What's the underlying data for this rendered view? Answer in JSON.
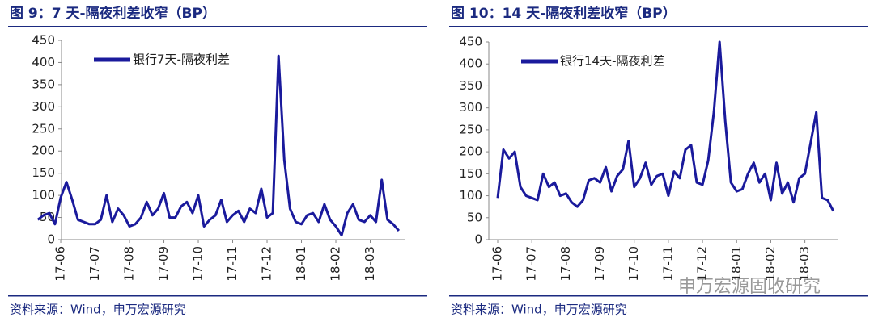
{
  "watermark": "申万宏源固收研究",
  "chart_data": [
    {
      "type": "line",
      "title": "图 9：7 天-隔夜利差收窄（BP）",
      "source": "资料来源：Wind，申万宏源研究",
      "categories": [
        null,
        null,
        null,
        null,
        "17-06",
        null,
        null,
        null,
        null,
        null,
        "17-07",
        null,
        null,
        null,
        null,
        null,
        "17-08",
        null,
        null,
        null,
        null,
        null,
        "17-09",
        null,
        null,
        null,
        null,
        null,
        "17-10",
        null,
        null,
        null,
        null,
        null,
        "17-11",
        null,
        null,
        null,
        null,
        null,
        "17-12",
        null,
        null,
        null,
        null,
        null,
        "18-01",
        null,
        null,
        null,
        null,
        null,
        "18-02",
        null,
        null,
        null,
        null,
        null,
        "18-03",
        null,
        null,
        null,
        null,
        null
      ],
      "series": [
        {
          "name": "银行7天-隔夜利差",
          "color": "#1a1a9c",
          "values": [
            45,
            55,
            60,
            35,
            95,
            130,
            90,
            45,
            40,
            35,
            35,
            45,
            100,
            40,
            70,
            55,
            30,
            35,
            50,
            85,
            55,
            70,
            105,
            50,
            50,
            75,
            85,
            60,
            100,
            30,
            45,
            55,
            90,
            40,
            55,
            65,
            40,
            70,
            60,
            115,
            50,
            60,
            415,
            180,
            70,
            40,
            35,
            55,
            60,
            40,
            80,
            45,
            30,
            10,
            60,
            80,
            45,
            40,
            55,
            40,
            135,
            45,
            35,
            20
          ]
        }
      ],
      "ylim": [
        0,
        450
      ],
      "yticks": [
        0,
        50,
        100,
        150,
        200,
        250,
        300,
        350,
        400,
        450
      ],
      "legend": "upper left"
    },
    {
      "type": "line",
      "title": "图 10：14 天-隔夜利差收窄（BP）",
      "source": "资料来源：Wind，申万宏源研究",
      "categories": [
        "17-06",
        null,
        null,
        null,
        null,
        null,
        "17-07",
        null,
        null,
        null,
        null,
        null,
        "17-08",
        null,
        null,
        null,
        null,
        null,
        "17-09",
        null,
        null,
        null,
        null,
        null,
        "17-10",
        null,
        null,
        null,
        null,
        null,
        "17-11",
        null,
        null,
        null,
        null,
        null,
        "17-12",
        null,
        null,
        null,
        null,
        null,
        "18-01",
        null,
        null,
        null,
        null,
        null,
        "18-02",
        null,
        null,
        null,
        null,
        null,
        "18-03",
        null,
        null,
        null,
        null,
        null
      ],
      "series": [
        {
          "name": "银行14天-隔夜利差",
          "color": "#1a1a9c",
          "values": [
            95,
            205,
            185,
            200,
            120,
            100,
            95,
            90,
            150,
            120,
            130,
            100,
            105,
            85,
            75,
            90,
            135,
            140,
            130,
            165,
            110,
            145,
            160,
            225,
            120,
            140,
            175,
            125,
            145,
            150,
            100,
            155,
            140,
            205,
            215,
            130,
            125,
            180,
            290,
            450,
            270,
            130,
            110,
            115,
            150,
            175,
            130,
            150,
            90,
            175,
            105,
            130,
            85,
            140,
            150,
            220,
            290,
            95,
            90,
            65
          ]
        }
      ],
      "ylim": [
        0,
        450
      ],
      "yticks": [
        0,
        50,
        100,
        150,
        200,
        250,
        300,
        350,
        400,
        450
      ],
      "legend": "upper left"
    }
  ]
}
